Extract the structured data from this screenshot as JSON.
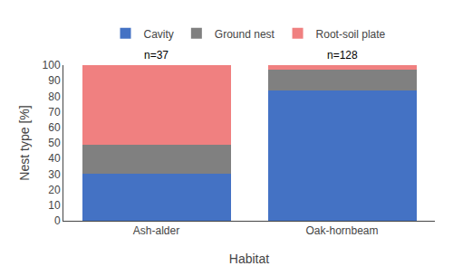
{
  "chart_data": {
    "type": "bar",
    "xlabel": "Habitat",
    "ylabel": "Nest type [%]",
    "categories": [
      "Ash-alder",
      "Oak-hornbeam"
    ],
    "series": [
      {
        "name": "Cavity",
        "color": "#4472C4",
        "values": [
          30,
          84
        ]
      },
      {
        "name": "Ground nest",
        "color": "#808080",
        "values": [
          19,
          13
        ]
      },
      {
        "name": "Root-soil plate",
        "color": "#F08080",
        "values": [
          51,
          3
        ]
      }
    ],
    "annotations": [
      "n=37",
      "n=128"
    ],
    "ylim": [
      0,
      100
    ],
    "yticks": [
      0,
      10,
      20,
      30,
      40,
      50,
      60,
      70,
      80,
      90,
      100
    ],
    "stacked": true,
    "grid": false,
    "legend": "top"
  }
}
